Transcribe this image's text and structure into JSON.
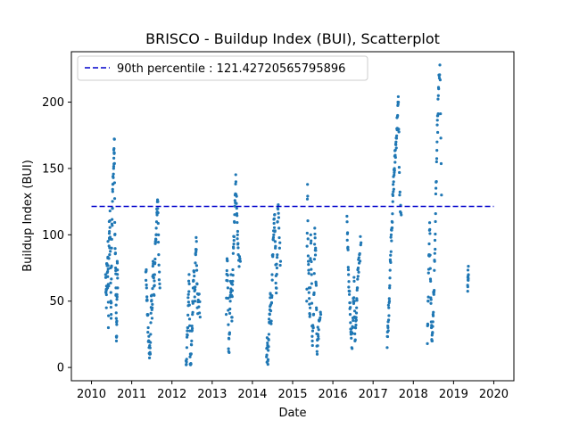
{
  "chart_data": {
    "type": "scatter",
    "title": "BRISCO - Buildup Index (BUI), Scatterplot",
    "xlabel": "Date",
    "ylabel": "Buildup Index (BUI)",
    "xlim": [
      2009.5,
      2020.5
    ],
    "ylim": [
      -10,
      238
    ],
    "xticks": [
      2010,
      2011,
      2012,
      2013,
      2014,
      2015,
      2016,
      2017,
      2018,
      2019,
      2020
    ],
    "xtick_labels": [
      "2010",
      "2011",
      "2012",
      "2013",
      "2014",
      "2015",
      "2016",
      "2017",
      "2018",
      "2019",
      "2020"
    ],
    "yticks": [
      0,
      50,
      100,
      150,
      200
    ],
    "ytick_labels": [
      "0",
      "50",
      "100",
      "150",
      "200"
    ],
    "grid": false,
    "legend_position": "top-left",
    "reference_line": {
      "label": "90th percentile : 121.42720565795896",
      "y": 121.42720565795896,
      "x_range": [
        2010.0,
        2020.0
      ],
      "color": "#0000cc",
      "style": "dashed"
    },
    "series": [
      {
        "color": "#1f77b4",
        "seasons": [
          {
            "year": 2010,
            "x_start": 2010.35,
            "x_end": 2010.65,
            "points": [
              [
                2010.35,
                70
              ],
              [
                2010.37,
                45
              ],
              [
                2010.38,
                78
              ],
              [
                2010.4,
                60
              ],
              [
                2010.41,
                95
              ],
              [
                2010.42,
                30
              ],
              [
                2010.44,
                110
              ],
              [
                2010.45,
                85
              ],
              [
                2010.46,
                118
              ],
              [
                2010.48,
                50
              ],
              [
                2010.49,
                40
              ],
              [
                2010.5,
                90
              ],
              [
                2010.52,
                120
              ],
              [
                2010.53,
                138
              ],
              [
                2010.55,
                150
              ],
              [
                2010.56,
                165
              ],
              [
                2010.57,
                172
              ],
              [
                2010.58,
                100
              ],
              [
                2010.6,
                75
              ],
              [
                2010.61,
                55
              ],
              [
                2010.62,
                20
              ],
              [
                2010.63,
                35
              ],
              [
                2010.64,
                80
              ],
              [
                2010.65,
                60
              ]
            ]
          },
          {
            "year": 2011,
            "x_start": 2011.35,
            "x_end": 2011.7,
            "points": [
              [
                2011.35,
                72
              ],
              [
                2011.37,
                60
              ],
              [
                2011.39,
                40
              ],
              [
                2011.41,
                30
              ],
              [
                2011.43,
                15
              ],
              [
                2011.45,
                10
              ],
              [
                2011.47,
                25
              ],
              [
                2011.49,
                50
              ],
              [
                2011.51,
                45
              ],
              [
                2011.53,
                80
              ],
              [
                2011.55,
                55
              ],
              [
                2011.57,
                70
              ],
              [
                2011.59,
                95
              ],
              [
                2011.61,
                105
              ],
              [
                2011.63,
                115
              ],
              [
                2011.65,
                125
              ],
              [
                2011.67,
                85
              ],
              [
                2011.7,
                60
              ]
            ]
          },
          {
            "year": 2012,
            "x_start": 2012.35,
            "x_end": 2012.7,
            "points": [
              [
                2012.35,
                5
              ],
              [
                2012.37,
                15
              ],
              [
                2012.39,
                30
              ],
              [
                2012.41,
                55
              ],
              [
                2012.43,
                63
              ],
              [
                2012.45,
                8
              ],
              [
                2012.47,
                3
              ],
              [
                2012.49,
                20
              ],
              [
                2012.51,
                40
              ],
              [
                2012.53,
                65
              ],
              [
                2012.55,
                72
              ],
              [
                2012.57,
                50
              ],
              [
                2012.59,
                85
              ],
              [
                2012.61,
                95
              ],
              [
                2012.63,
                45
              ],
              [
                2012.66,
                55
              ],
              [
                2012.7,
                38
              ]
            ]
          },
          {
            "year": 2013,
            "x_start": 2013.35,
            "x_end": 2013.7,
            "points": [
              [
                2013.35,
                40
              ],
              [
                2013.37,
                82
              ],
              [
                2013.39,
                60
              ],
              [
                2013.41,
                12
              ],
              [
                2013.43,
                25
              ],
              [
                2013.45,
                50
              ],
              [
                2013.47,
                70
              ],
              [
                2013.49,
                35
              ],
              [
                2013.51,
                65
              ],
              [
                2013.53,
                90
              ],
              [
                2013.55,
                110
              ],
              [
                2013.57,
                130
              ],
              [
                2013.59,
                140
              ],
              [
                2013.61,
                120
              ],
              [
                2013.63,
                100
              ],
              [
                2013.65,
                85
              ],
              [
                2013.7,
                80
              ]
            ]
          },
          {
            "year": 2014,
            "x_start": 2014.35,
            "x_end": 2014.7,
            "points": [
              [
                2014.35,
                8
              ],
              [
                2014.37,
                15
              ],
              [
                2014.39,
                6
              ],
              [
                2014.41,
                25
              ],
              [
                2014.43,
                40
              ],
              [
                2014.45,
                55
              ],
              [
                2014.47,
                35
              ],
              [
                2014.49,
                70
              ],
              [
                2014.51,
                85
              ],
              [
                2014.53,
                100
              ],
              [
                2014.55,
                115
              ],
              [
                2014.57,
                90
              ],
              [
                2014.59,
                60
              ],
              [
                2014.61,
                75
              ],
              [
                2014.63,
                120
              ],
              [
                2014.66,
                105
              ],
              [
                2014.7,
                80
              ]
            ]
          },
          {
            "year": 2015,
            "x_start": 2015.35,
            "x_end": 2015.7,
            "points": [
              [
                2015.35,
                50
              ],
              [
                2015.37,
                138
              ],
              [
                2015.39,
                80
              ],
              [
                2015.41,
                60
              ],
              [
                2015.43,
                40
              ],
              [
                2015.45,
                100
              ],
              [
                2015.47,
                70
              ],
              [
                2015.49,
                20
              ],
              [
                2015.51,
                30
              ],
              [
                2015.53,
                55
              ],
              [
                2015.55,
                105
              ],
              [
                2015.57,
                90
              ],
              [
                2015.59,
                45
              ],
              [
                2015.61,
                10
              ],
              [
                2015.63,
                25
              ],
              [
                2015.66,
                35
              ],
              [
                2015.7,
                40
              ]
            ]
          },
          {
            "year": 2016,
            "x_start": 2016.35,
            "x_end": 2016.7,
            "points": [
              [
                2016.35,
                114
              ],
              [
                2016.37,
                90
              ],
              [
                2016.39,
                70
              ],
              [
                2016.41,
                55
              ],
              [
                2016.43,
                40
              ],
              [
                2016.45,
                25
              ],
              [
                2016.47,
                15
              ],
              [
                2016.49,
                30
              ],
              [
                2016.51,
                50
              ],
              [
                2016.53,
                65
              ],
              [
                2016.55,
                20
              ],
              [
                2016.57,
                35
              ],
              [
                2016.59,
                45
              ],
              [
                2016.61,
                60
              ],
              [
                2016.63,
                75
              ],
              [
                2016.66,
                85
              ],
              [
                2016.7,
                94
              ]
            ]
          },
          {
            "year": 2017,
            "x_start": 2017.35,
            "x_end": 2017.7,
            "points": [
              [
                2017.35,
                15
              ],
              [
                2017.37,
                30
              ],
              [
                2017.39,
                45
              ],
              [
                2017.41,
                60
              ],
              [
                2017.43,
                80
              ],
              [
                2017.45,
                100
              ],
              [
                2017.47,
                110
              ],
              [
                2017.49,
                125
              ],
              [
                2017.51,
                140
              ],
              [
                2017.53,
                150
              ],
              [
                2017.55,
                160
              ],
              [
                2017.57,
                170
              ],
              [
                2017.59,
                180
              ],
              [
                2017.61,
                190
              ],
              [
                2017.63,
                200
              ],
              [
                2017.66,
                130
              ],
              [
                2017.7,
                115
              ]
            ]
          },
          {
            "year": 2018,
            "x_start": 2018.35,
            "x_end": 2018.7,
            "points": [
              [
                2018.35,
                18
              ],
              [
                2018.37,
                50
              ],
              [
                2018.39,
                85
              ],
              [
                2018.41,
                104
              ],
              [
                2018.43,
                65
              ],
              [
                2018.45,
                30
              ],
              [
                2018.47,
                20
              ],
              [
                2018.49,
                40
              ],
              [
                2018.51,
                55
              ],
              [
                2018.53,
                80
              ],
              [
                2018.55,
                110
              ],
              [
                2018.57,
                140
              ],
              [
                2018.59,
                170
              ],
              [
                2018.61,
                190
              ],
              [
                2018.63,
                210
              ],
              [
                2018.66,
                228
              ],
              [
                2018.7,
                130
              ]
            ]
          },
          {
            "year": 2019,
            "x_start": 2019.35,
            "x_end": 2019.38,
            "points": [
              [
                2019.35,
                62
              ],
              [
                2019.36,
                66
              ],
              [
                2019.37,
                70
              ]
            ]
          }
        ]
      }
    ]
  }
}
